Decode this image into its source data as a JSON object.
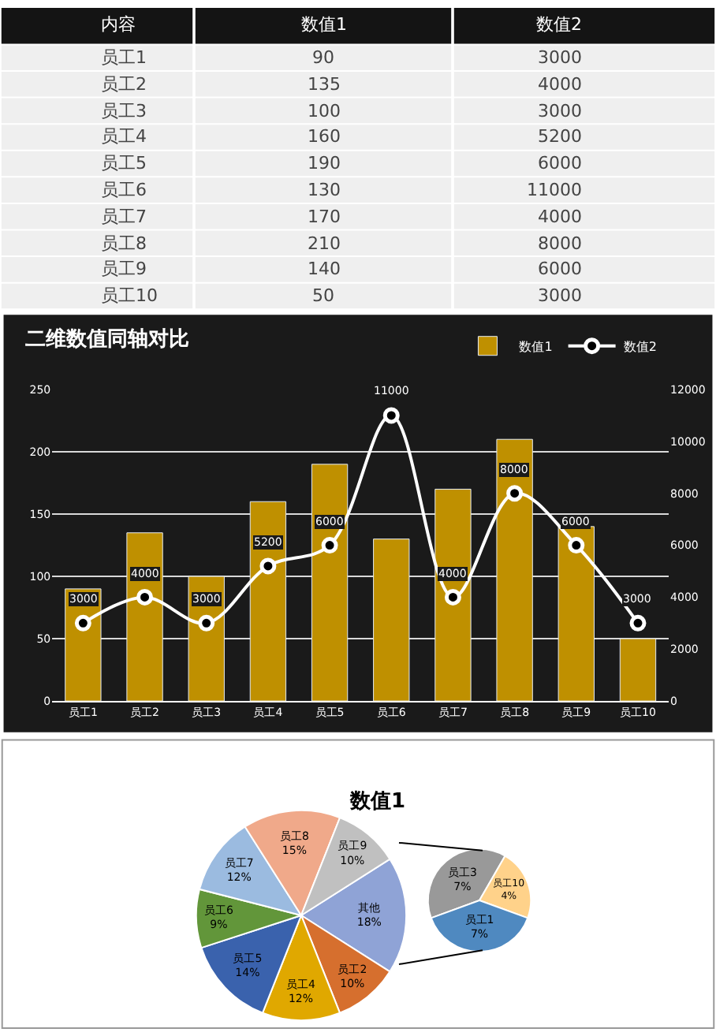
{
  "chart_data": [
    {
      "type": "other",
      "xlabel": "内容",
      "data_labels": true,
      "categories": [
        "员工1",
        "员工2",
        "员工3",
        "员工4",
        "员工5",
        "员工6",
        "员工7",
        "员工8",
        "员工9",
        "员工10"
      ],
      "series": [
        {
          "name": "数值1",
          "values": [
            90,
            135,
            100,
            160,
            190,
            130,
            170,
            210,
            140,
            50
          ]
        },
        {
          "name": "数值2",
          "values": [
            3000,
            4000,
            3000,
            5200,
            6000,
            11000,
            4000,
            8000,
            6000,
            3000
          ]
        }
      ]
    },
    {
      "type": "bar",
      "title": "二维数值同轴对比",
      "categories": [
        "员工1",
        "员工2",
        "员工3",
        "员工4",
        "员工5",
        "员工6",
        "员工7",
        "员工8",
        "员工9",
        "员工10"
      ],
      "series": [
        {
          "name": "数值1",
          "color": "#bf9000",
          "values": [
            90,
            135,
            100,
            160,
            190,
            130,
            170,
            210,
            140,
            50
          ]
        },
        {
          "name": "数值2",
          "type": "line",
          "axis": "y2",
          "color": "#ffffff",
          "marker": "circle",
          "values": [
            3000,
            4000,
            3000,
            5200,
            6000,
            11000,
            4000,
            8000,
            6000,
            3000
          ],
          "value_labels": [
            "3000",
            "4000",
            "3000",
            "5200",
            "6000",
            "11000",
            "4000",
            "8000",
            "6000",
            "3000"
          ]
        }
      ],
      "ylim": [
        0,
        250
      ],
      "yticks": [
        0,
        50,
        100,
        150,
        200,
        250
      ],
      "y2lim": [
        0,
        12000
      ],
      "y2ticks": [
        0,
        2000,
        4000,
        6000,
        8000,
        10000,
        12000
      ],
      "grid": "y",
      "legend": "top right"
    },
    {
      "type": "pie",
      "title": "数值1",
      "categories": [
        "其他",
        "员工2",
        "员工4",
        "员工5",
        "员工6",
        "员工7",
        "员工8",
        "员工9"
      ],
      "values": [
        18,
        10,
        12,
        14,
        9,
        12,
        15,
        10
      ],
      "value_labels": [
        "18%",
        "10%",
        "12%",
        "14%",
        "9%",
        "12%",
        "15%",
        "10%"
      ],
      "colors": [
        "#8fa3d6",
        "#d66f2e",
        "#e0a800",
        "#3a62ad",
        "#62963a",
        "#9bbbe0",
        "#f0a98a",
        "#c0c0c0"
      ]
    },
    {
      "type": "pie",
      "categories": [
        "员工3",
        "员工10",
        "员工1"
      ],
      "values": [
        7,
        4,
        7
      ],
      "value_labels": [
        "7%",
        "4%",
        "7%"
      ],
      "colors": [
        "#999999",
        "#ffd28a",
        "#4f89c0"
      ]
    }
  ]
}
